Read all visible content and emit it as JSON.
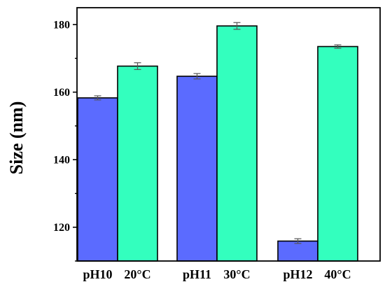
{
  "chart_data": {
    "type": "bar",
    "ylabel": "Size (nm)",
    "xlabel": "",
    "ylim": [
      110,
      185
    ],
    "yticks": [
      120,
      140,
      160,
      180
    ],
    "groups": [
      {
        "bar_labels": [
          "pH10",
          "20°C"
        ],
        "values": [
          158.3,
          167.7
        ],
        "errors": [
          0.6,
          1.0
        ]
      },
      {
        "bar_labels": [
          "pH11",
          "30°C"
        ],
        "values": [
          164.7,
          179.6
        ],
        "errors": [
          0.8,
          1.0
        ]
      },
      {
        "bar_labels": [
          "pH12",
          "40°C"
        ],
        "values": [
          115.9,
          173.5
        ],
        "errors": [
          0.7,
          0.5
        ]
      }
    ],
    "series_colors": [
      "#5b6bff",
      "#33ffbe"
    ],
    "error_bar_color": "#555555",
    "legend": "none",
    "grid": false
  }
}
